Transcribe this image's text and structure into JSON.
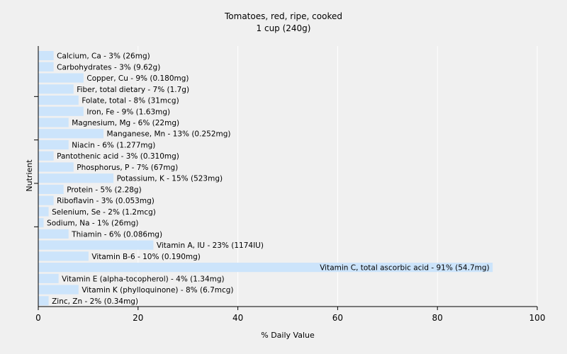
{
  "chart_data": {
    "type": "bar",
    "orientation": "horizontal",
    "title": "Tomatoes, red, ripe, cooked",
    "subtitle": "1 cup (240g)",
    "xlabel": "% Daily Value",
    "ylabel": "Nutrient",
    "xlim": [
      0,
      100
    ],
    "xticks": [
      0,
      20,
      40,
      60,
      80,
      100
    ],
    "grid": true,
    "bar_color": "#cce4fb",
    "grid_color": "#ffffff",
    "categories": [
      "Calcium, Ca",
      "Carbohydrates",
      "Copper, Cu",
      "Fiber, total dietary",
      "Folate, total",
      "Iron, Fe",
      "Magnesium, Mg",
      "Manganese, Mn",
      "Niacin",
      "Pantothenic acid",
      "Phosphorus, P",
      "Potassium, K",
      "Protein",
      "Riboflavin",
      "Selenium, Se",
      "Sodium, Na",
      "Thiamin",
      "Vitamin A, IU",
      "Vitamin B-6",
      "Vitamin C, total ascorbic acid",
      "Vitamin E (alpha-tocopherol)",
      "Vitamin K (phylloquinone)",
      "Zinc, Zn"
    ],
    "values": [
      3,
      3,
      9,
      7,
      8,
      9,
      6,
      13,
      6,
      3,
      7,
      15,
      5,
      3,
      2,
      1,
      6,
      23,
      10,
      91,
      4,
      8,
      2
    ],
    "labels": [
      "Calcium, Ca - 3% (26mg)",
      "Carbohydrates - 3% (9.62g)",
      "Copper, Cu - 9% (0.180mg)",
      "Fiber, total dietary - 7% (1.7g)",
      "Folate, total - 8% (31mcg)",
      "Iron, Fe - 9% (1.63mg)",
      "Magnesium, Mg - 6% (22mg)",
      "Manganese, Mn - 13% (0.252mg)",
      "Niacin - 6% (1.277mg)",
      "Pantothenic acid - 3% (0.310mg)",
      "Phosphorus, P - 7% (67mg)",
      "Potassium, K - 15% (523mg)",
      "Protein - 5% (2.28g)",
      "Riboflavin - 3% (0.053mg)",
      "Selenium, Se - 2% (1.2mcg)",
      "Sodium, Na - 1% (26mg)",
      "Thiamin - 6% (0.086mg)",
      "Vitamin A, IU - 23% (1174IU)",
      "Vitamin B-6 - 10% (0.190mg)",
      "Vitamin C, total ascorbic acid - 91% (54.7mg)",
      "Vitamin E (alpha-tocopherol) - 4% (1.34mg)",
      "Vitamin K (phylloquinone) - 8% (6.7mcg)",
      "Zinc, Zn - 2% (0.34mg)"
    ]
  }
}
